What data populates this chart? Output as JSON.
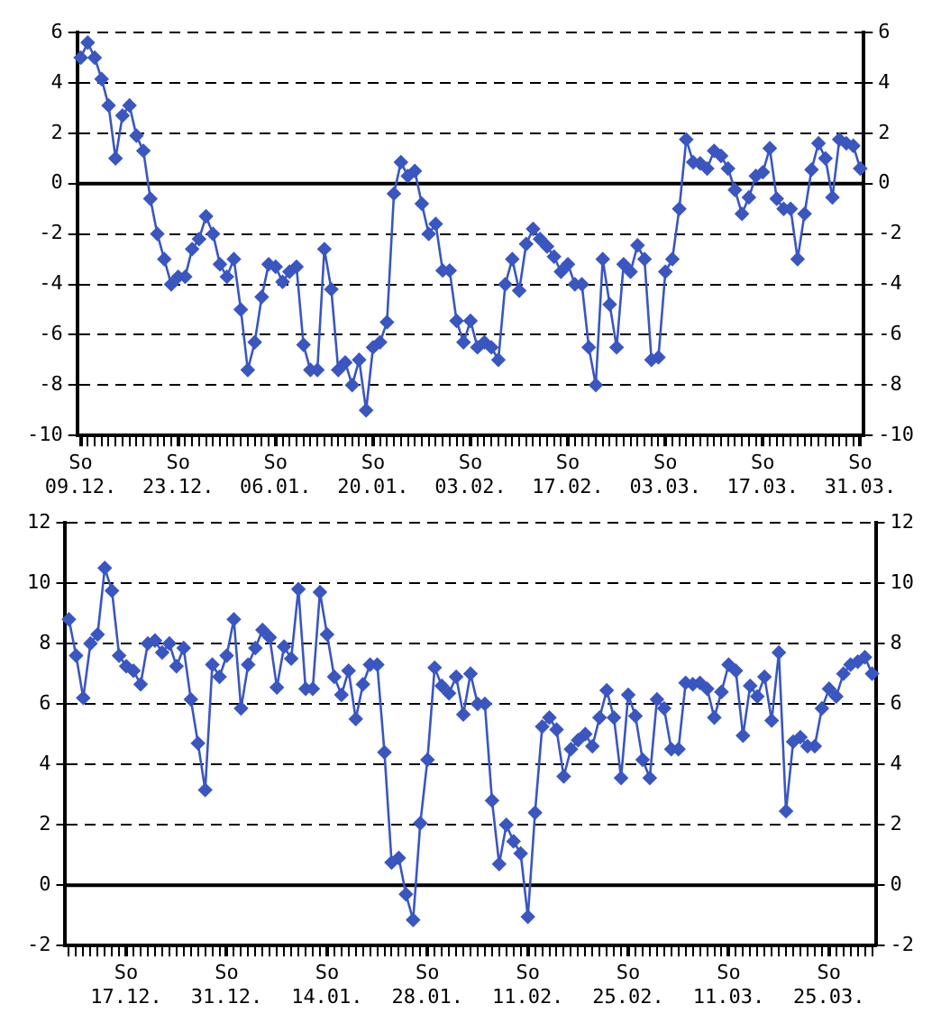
{
  "chart_data": [
    {
      "type": "line",
      "marker": "diamond",
      "line_style": "solid",
      "grid": "y",
      "legend": false,
      "categories": [
        "So\n09.12.",
        null,
        null,
        null,
        null,
        null,
        null,
        null,
        null,
        null,
        null,
        null,
        null,
        null,
        "So\n23.12.",
        null,
        null,
        null,
        null,
        null,
        null,
        null,
        null,
        null,
        null,
        null,
        null,
        null,
        "So\n06.01.",
        null,
        null,
        null,
        null,
        null,
        null,
        null,
        null,
        null,
        null,
        null,
        null,
        null,
        "So\n20.01.",
        null,
        null,
        null,
        null,
        null,
        null,
        null,
        null,
        null,
        null,
        null,
        null,
        null,
        "So\n03.02.",
        null,
        null,
        null,
        null,
        null,
        null,
        null,
        null,
        null,
        null,
        null,
        null,
        null,
        "So\n17.02.",
        null,
        null,
        null,
        null,
        null,
        null,
        null,
        null,
        null,
        null,
        null,
        null,
        null,
        "So\n03.03.",
        null,
        null,
        null,
        null,
        null,
        null,
        null,
        null,
        null,
        null,
        null,
        null,
        null,
        "So\n17.03.",
        null,
        null,
        null,
        null,
        null,
        null,
        null,
        null,
        null,
        null,
        null,
        null,
        null,
        "So\n31.03."
      ],
      "series": [
        {
          "color": "#3a56c0",
          "values": [
            5.0,
            5.6,
            5.0,
            4.15,
            3.1,
            1.0,
            2.7,
            3.1,
            1.9,
            1.3,
            -0.6,
            -2.0,
            -3.0,
            -4.0,
            -3.7,
            -3.7,
            -2.6,
            -2.2,
            -1.3,
            -2.0,
            -3.2,
            -3.7,
            -3.0,
            -5.0,
            -7.4,
            -6.3,
            -4.5,
            -3.2,
            -3.3,
            -3.9,
            -3.5,
            -3.3,
            -6.4,
            -7.4,
            -7.4,
            -2.6,
            -4.2,
            -7.4,
            -7.1,
            -8.0,
            -7.0,
            -9.0,
            -6.5,
            -6.3,
            -5.5,
            -0.4,
            0.85,
            0.3,
            0.5,
            -0.8,
            -2.0,
            -1.6,
            -3.45,
            -3.45,
            -5.45,
            -6.3,
            -5.45,
            -6.5,
            -6.3,
            -6.5,
            -7.0,
            -4.0,
            -3.0,
            -4.25,
            -2.4,
            -1.8,
            -2.2,
            -2.5,
            -2.9,
            -3.5,
            -3.2,
            -4.0,
            -4.0,
            -6.5,
            -8.0,
            -3.0,
            -4.8,
            -6.5,
            -3.2,
            -3.5,
            -2.45,
            -3.0,
            -7.0,
            -6.9,
            -3.5,
            -3.0,
            -1.0,
            1.75,
            0.85,
            0.8,
            0.6,
            1.3,
            1.1,
            0.6,
            -0.25,
            -1.2,
            -0.55,
            0.3,
            0.45,
            1.4,
            -0.6,
            -1.0,
            -1.0,
            -3.0,
            -1.2,
            0.55,
            1.6,
            1.0,
            -0.55,
            1.75,
            1.6,
            1.5,
            0.6
          ]
        }
      ],
      "ylim": [
        -10,
        6
      ],
      "yticks": [
        -10,
        -8,
        -6,
        -4,
        -2,
        0,
        2,
        4,
        6
      ],
      "y2lim": [
        -10,
        6
      ],
      "y2ticks": [
        -10,
        -8,
        -6,
        -4,
        -2,
        0,
        2,
        4,
        6
      ],
      "ref_lines": [
        {
          "axis": "y",
          "value": 0,
          "color": "#000000",
          "line_style": "solid"
        }
      ]
    },
    {
      "type": "line",
      "marker": "diamond",
      "line_style": "solid",
      "grid": "y",
      "legend": false,
      "categories": [
        null,
        null,
        null,
        null,
        null,
        null,
        null,
        null,
        "So\n17.12.",
        null,
        null,
        null,
        null,
        null,
        null,
        null,
        null,
        null,
        null,
        null,
        null,
        null,
        "So\n31.12.",
        null,
        null,
        null,
        null,
        null,
        null,
        null,
        null,
        null,
        null,
        null,
        null,
        null,
        "So\n14.01.",
        null,
        null,
        null,
        null,
        null,
        null,
        null,
        null,
        null,
        null,
        null,
        null,
        null,
        "So\n28.01.",
        null,
        null,
        null,
        null,
        null,
        null,
        null,
        null,
        null,
        null,
        null,
        null,
        null,
        "So\n11.02.",
        null,
        null,
        null,
        null,
        null,
        null,
        null,
        null,
        null,
        null,
        null,
        null,
        null,
        "So\n25.02.",
        null,
        null,
        null,
        null,
        null,
        null,
        null,
        null,
        null,
        null,
        null,
        null,
        null,
        "So\n11.03.",
        null,
        null,
        null,
        null,
        null,
        null,
        null,
        null,
        null,
        null,
        null,
        null,
        null,
        "So\n25.03.",
        null,
        null,
        null,
        null,
        null,
        null
      ],
      "series": [
        {
          "color": "#3a56c0",
          "values": [
            8.8,
            7.6,
            6.2,
            8.0,
            8.3,
            10.5,
            9.75,
            7.6,
            7.25,
            7.1,
            6.65,
            8.0,
            8.1,
            7.7,
            8.0,
            7.25,
            7.85,
            6.15,
            4.7,
            3.15,
            7.3,
            6.9,
            7.6,
            8.8,
            5.85,
            7.3,
            7.85,
            8.45,
            8.2,
            6.55,
            7.9,
            7.5,
            9.8,
            6.5,
            6.5,
            9.7,
            8.3,
            6.9,
            6.3,
            7.1,
            5.5,
            6.65,
            7.3,
            7.3,
            4.4,
            0.75,
            0.9,
            -0.3,
            -1.15,
            2.05,
            4.15,
            7.2,
            6.6,
            6.35,
            6.9,
            5.65,
            7.0,
            6.0,
            6.0,
            2.8,
            0.7,
            2.0,
            1.45,
            1.05,
            -1.05,
            2.4,
            5.25,
            5.55,
            5.15,
            3.6,
            4.5,
            4.8,
            5.0,
            4.6,
            5.55,
            6.45,
            5.55,
            3.55,
            6.3,
            5.6,
            4.15,
            3.55,
            6.15,
            5.85,
            4.5,
            4.5,
            6.7,
            6.65,
            6.7,
            6.5,
            5.55,
            6.4,
            7.3,
            7.1,
            4.95,
            6.6,
            6.25,
            6.9,
            5.45,
            7.7,
            2.45,
            4.75,
            4.9,
            4.6,
            4.6,
            5.85,
            6.5,
            6.25,
            7.0,
            7.3,
            7.4,
            7.55,
            7.0
          ]
        }
      ],
      "ylim": [
        -2,
        12
      ],
      "yticks": [
        -2,
        0,
        2,
        4,
        6,
        8,
        10,
        12
      ],
      "y2lim": [
        -2,
        12
      ],
      "y2ticks": [
        -2,
        0,
        2,
        4,
        6,
        8,
        10,
        12
      ],
      "ref_lines": [
        {
          "axis": "y",
          "value": 0,
          "color": "#000000",
          "line_style": "solid"
        }
      ]
    }
  ]
}
